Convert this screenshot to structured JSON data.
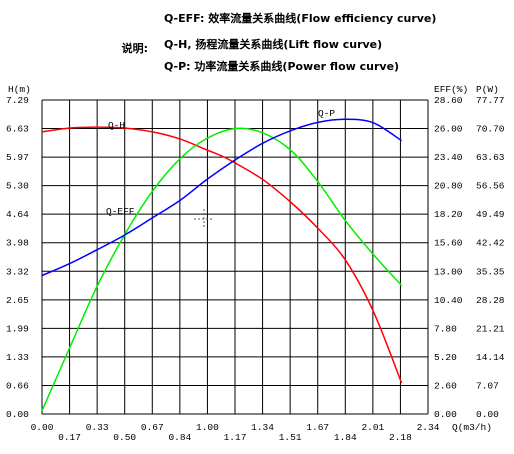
{
  "legend_heading": "说明:",
  "legend": [
    "Q-EFF: 效率流量关系曲线(Flow efficiency curve)",
    "Q-H, 扬程流量关系曲线(Lift flow curve)",
    "Q-P: 功率流量关系曲线(Power flow curve)"
  ],
  "colors": {
    "grid": "#000000",
    "H": "#ff0000",
    "EFF": "#00ee00",
    "P": "#0000ff"
  },
  "chart_data": {
    "type": "line",
    "xlabel": "Q(m3/h)",
    "ylabel_left": "H(m)",
    "ylabel_right_eff": "EFF(%)",
    "ylabel_right_p": "P(W)",
    "xlim": [
      0,
      2.34
    ],
    "ylim_left": [
      0,
      7.29
    ],
    "ylim_eff": [
      0,
      28.6
    ],
    "ylim_p": [
      0,
      77.77
    ],
    "x_ticks_top": [
      "0.00",
      "0.33",
      "0.67",
      "1.00",
      "1.34",
      "1.67",
      "2.01",
      "2.34"
    ],
    "x_ticks_bottom": [
      "0.17",
      "0.50",
      "0.84",
      "1.17",
      "1.51",
      "1.84",
      "2.18"
    ],
    "y_ticks_left": [
      "7.29",
      "6.63",
      "5.97",
      "5.30",
      "4.64",
      "3.98",
      "3.32",
      "2.65",
      "1.99",
      "1.33",
      "0.66",
      "0.00"
    ],
    "y_ticks_eff": [
      "28.60",
      "26.00",
      "23.40",
      "20.80",
      "18.20",
      "15.60",
      "13.00",
      "10.40",
      "7.80",
      "5.20",
      "2.60",
      "0.00"
    ],
    "y_ticks_p": [
      "77.77",
      "70.70",
      "63.63",
      "56.56",
      "49.49",
      "42.42",
      "35.35",
      "28.28",
      "21.21",
      "14.14",
      "7.07",
      "0.00"
    ],
    "series": [
      {
        "name": "Q-H",
        "axis": "H",
        "x": [
          0,
          0.17,
          0.33,
          0.5,
          0.67,
          0.84,
          1.0,
          1.09,
          1.17,
          1.34,
          1.51,
          1.67,
          1.84,
          2.01,
          2.18
        ],
        "y": [
          6.55,
          6.64,
          6.66,
          6.64,
          6.55,
          6.38,
          6.13,
          5.99,
          5.83,
          5.44,
          4.91,
          4.32,
          3.57,
          2.37,
          0.72
        ]
      },
      {
        "name": "Q-EFF",
        "axis": "EFF",
        "x": [
          0,
          0.17,
          0.33,
          0.5,
          0.67,
          0.84,
          1.0,
          1.17,
          1.34,
          1.51,
          1.67,
          1.84,
          2.01,
          2.18
        ],
        "y": [
          0.3,
          6.1,
          11.5,
          16.3,
          20.3,
          23.3,
          25.1,
          26.0,
          25.6,
          24.0,
          21.2,
          17.6,
          14.5,
          11.7
        ]
      },
      {
        "name": "Q-P",
        "axis": "P",
        "x": [
          0,
          0.17,
          0.33,
          0.5,
          0.67,
          0.84,
          1.0,
          1.17,
          1.34,
          1.51,
          1.67,
          1.84,
          2.01,
          2.18
        ],
        "y": [
          34.3,
          37.3,
          40.6,
          44.3,
          48.6,
          53.0,
          58.1,
          62.9,
          67.1,
          70.2,
          72.2,
          73.0,
          72.1,
          67.7
        ]
      }
    ],
    "series_labels": [
      "Q-H",
      "Q-EFF",
      "Q-P"
    ],
    "grid": true
  }
}
